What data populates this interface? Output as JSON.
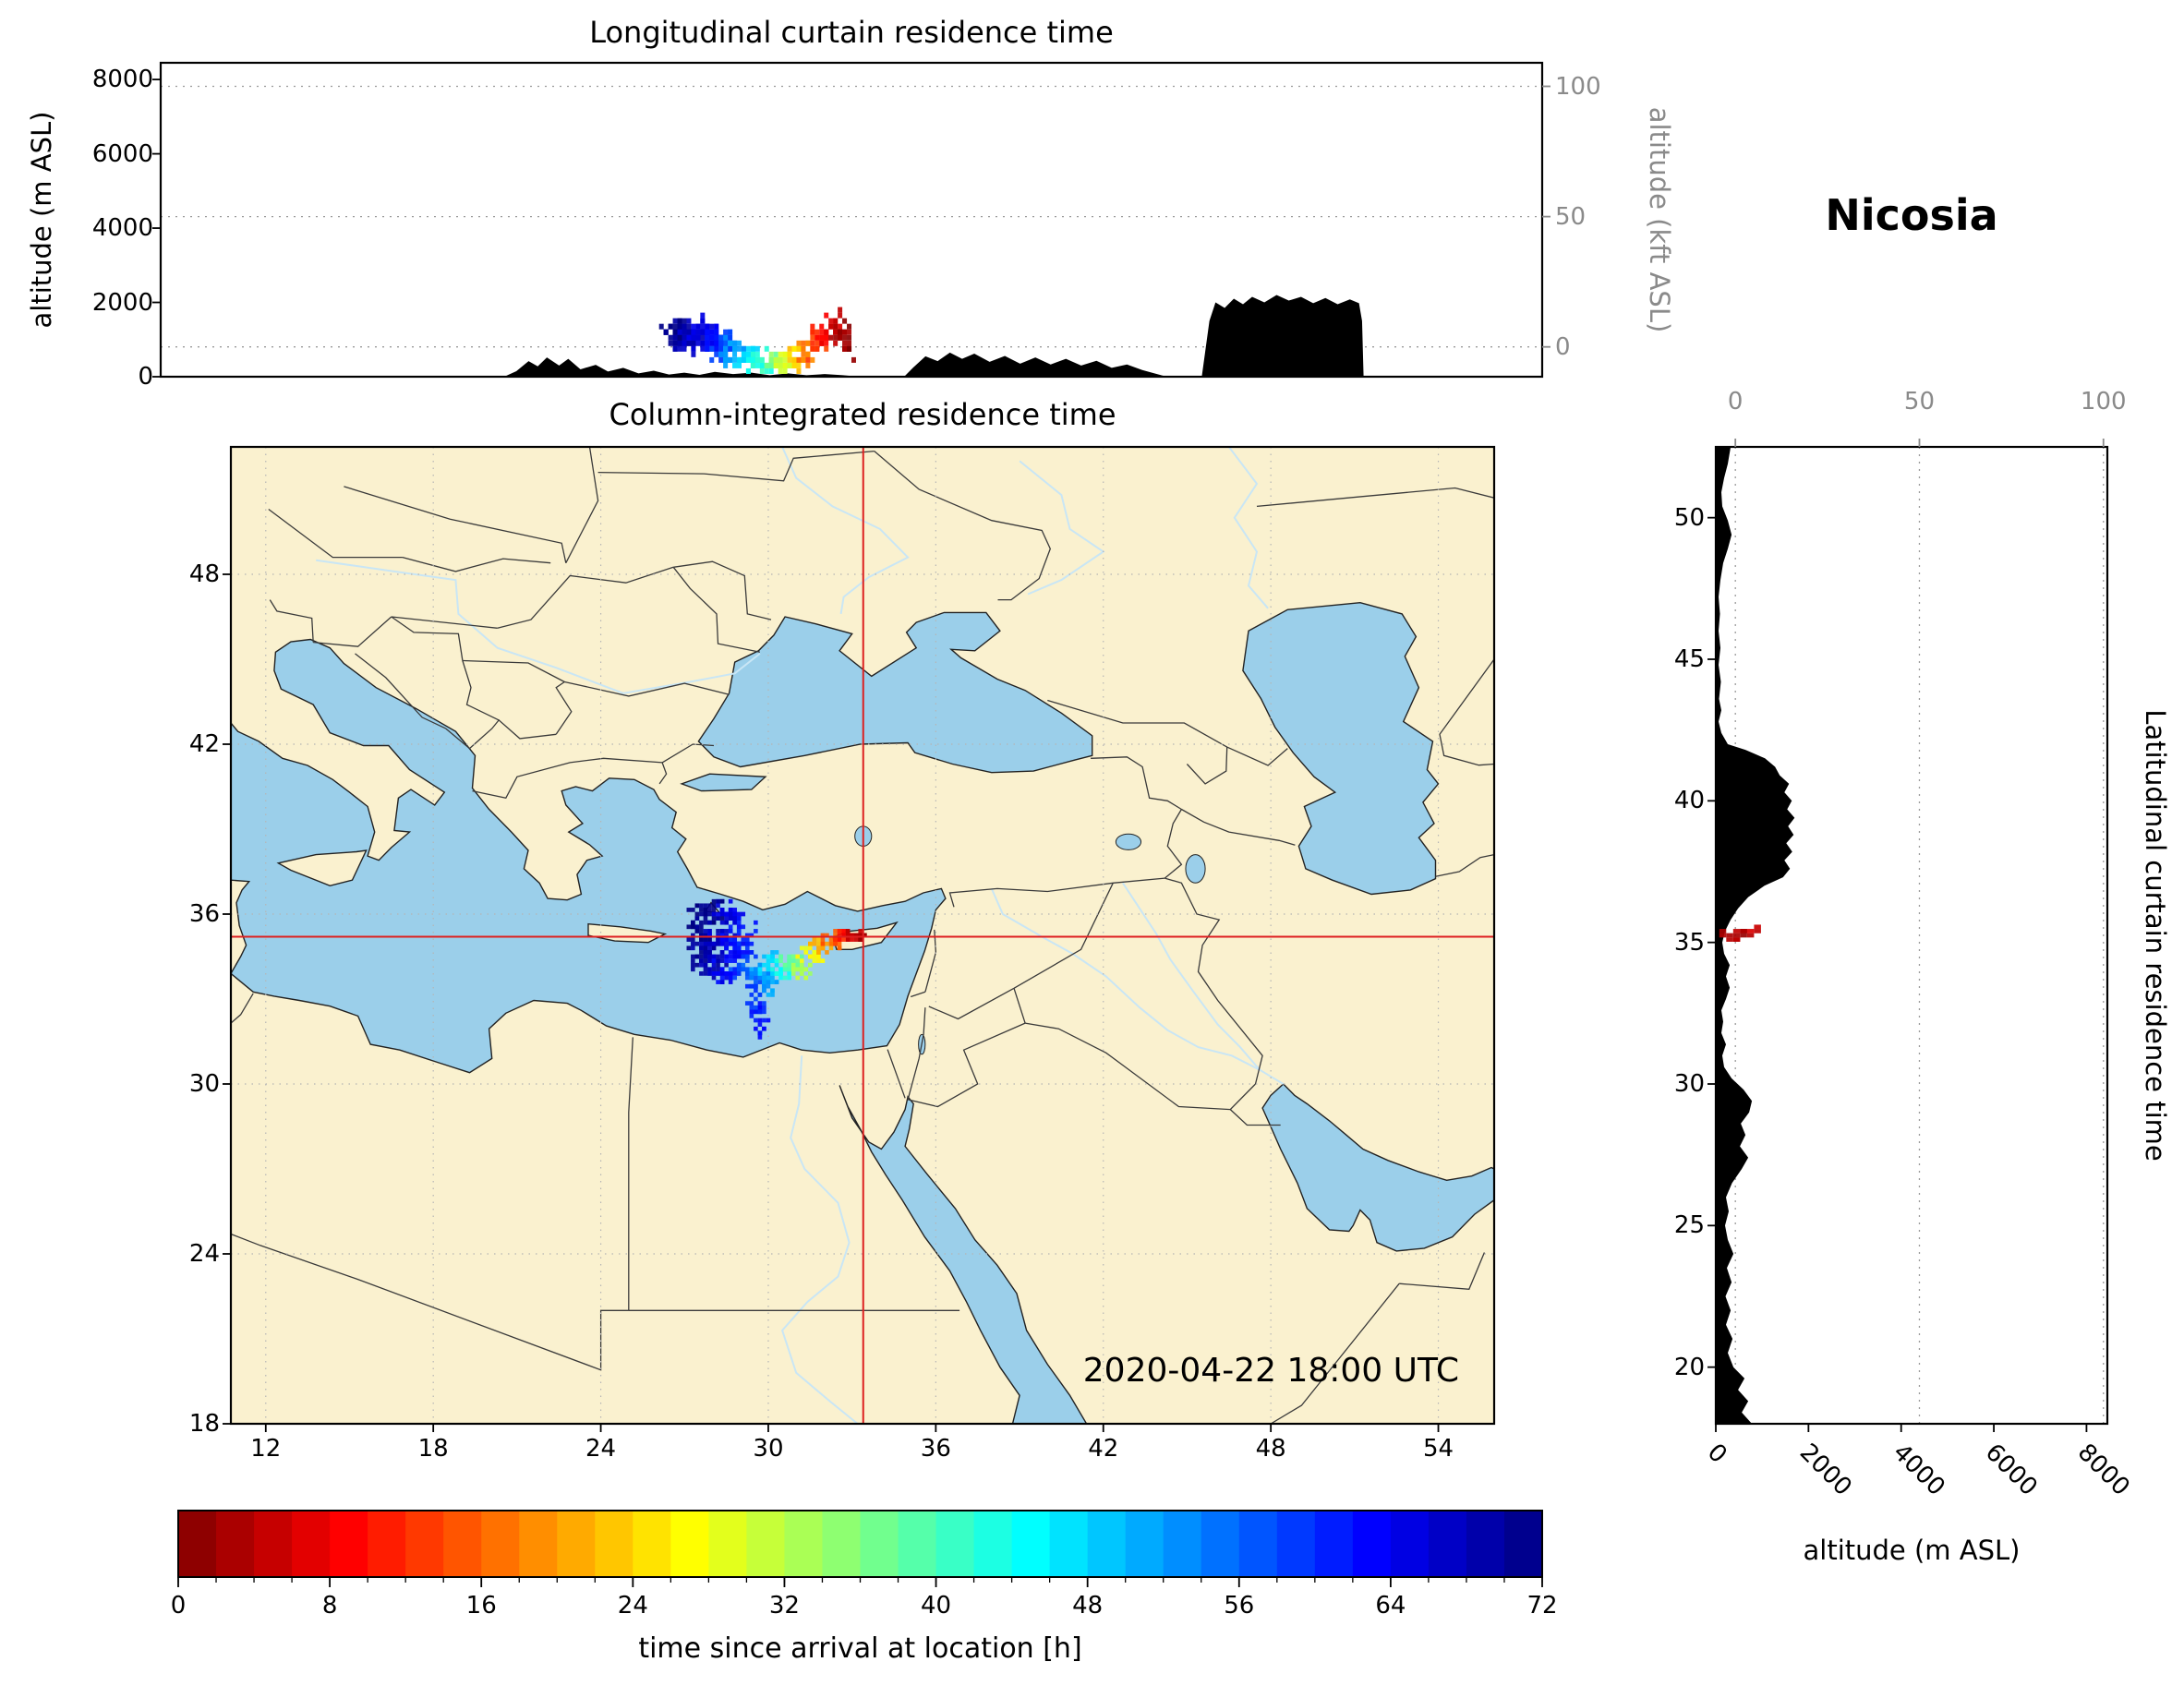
{
  "station": {
    "name": "Nicosia"
  },
  "timestamp_label": "2020-04-22 18:00 UTC",
  "top_panel": {
    "title": "Longitudinal curtain residence time",
    "ylabel_left": "altitude (m ASL)",
    "ylabel_right": "altitude (kft ASL)",
    "ytick_left_values": [
      0,
      2000,
      4000,
      6000,
      8000
    ],
    "ytick_right_values": [
      0,
      50,
      100
    ],
    "alt_max_m": 8450
  },
  "map_panel": {
    "title": "Column-integrated residence time",
    "xtick_values": [
      12,
      18,
      24,
      30,
      36,
      42,
      48,
      54
    ],
    "ytick_values": [
      18,
      24,
      30,
      36,
      42,
      48
    ],
    "lon_min": 10.75,
    "lon_max": 56,
    "lat_min": 18,
    "lat_max": 52.5,
    "crosshair_lon": 33.4,
    "crosshair_lat": 35.2
  },
  "right_panel": {
    "ylabel_right": "Latitudinal curtain residence time",
    "xlabel": "altitude (m ASL)",
    "xtick_bottom_values": [
      0,
      2000,
      4000,
      6000,
      8000
    ],
    "xtick_top_values": [
      0,
      50,
      100
    ],
    "ytick_values": [
      20,
      25,
      30,
      35,
      40,
      45,
      50
    ],
    "alt_max_m": 8450
  },
  "colorbar": {
    "label": "time since arrival at location [h]",
    "tick_values": [
      0,
      8,
      16,
      24,
      32,
      40,
      48,
      56,
      64,
      72
    ],
    "t_min": 0,
    "t_max": 72,
    "n_levels": 36,
    "minor_step": 2,
    "colormap": "jet_reversed"
  },
  "colors": {
    "land": "#faf1cf",
    "water": "#9bcfea",
    "river": "#c9e6f5",
    "terrain": "#000000",
    "crosshair": "#dd2020",
    "grid": "#b5b5b5",
    "axis_gray": "#8a8a8a",
    "frame": "#000000"
  },
  "chart_data": [
    {
      "type": "heatmap",
      "subtype": "longitudinal-curtain",
      "title": "Longitudinal curtain residence time",
      "x": "longitude_deg",
      "y": "altitude_m",
      "value": "time_since_arrival_h",
      "xlim": [
        10.75,
        56
      ],
      "ylim": [
        0,
        8450
      ],
      "terrain_profile": [
        [
          10.75,
          0
        ],
        [
          22.0,
          0
        ],
        [
          22.4,
          150
        ],
        [
          22.8,
          420
        ],
        [
          23.1,
          280
        ],
        [
          23.4,
          520
        ],
        [
          23.8,
          300
        ],
        [
          24.1,
          480
        ],
        [
          24.5,
          200
        ],
        [
          25.0,
          320
        ],
        [
          25.4,
          140
        ],
        [
          25.9,
          240
        ],
        [
          26.4,
          90
        ],
        [
          26.9,
          160
        ],
        [
          27.4,
          60
        ],
        [
          27.9,
          110
        ],
        [
          28.4,
          50
        ],
        [
          28.9,
          130
        ],
        [
          29.5,
          70
        ],
        [
          30.1,
          110
        ],
        [
          30.7,
          40
        ],
        [
          31.3,
          90
        ],
        [
          31.9,
          40
        ],
        [
          32.5,
          70
        ],
        [
          33.1,
          40
        ],
        [
          33.5,
          10
        ],
        [
          33.9,
          0
        ],
        [
          35.1,
          0
        ],
        [
          35.4,
          250
        ],
        [
          35.8,
          550
        ],
        [
          36.2,
          420
        ],
        [
          36.6,
          650
        ],
        [
          37.0,
          480
        ],
        [
          37.4,
          620
        ],
        [
          37.9,
          400
        ],
        [
          38.4,
          560
        ],
        [
          38.9,
          350
        ],
        [
          39.4,
          520
        ],
        [
          39.9,
          330
        ],
        [
          40.4,
          480
        ],
        [
          40.9,
          300
        ],
        [
          41.4,
          430
        ],
        [
          41.9,
          240
        ],
        [
          42.4,
          330
        ],
        [
          42.9,
          180
        ],
        [
          43.3,
          90
        ],
        [
          43.7,
          0
        ],
        [
          44.85,
          0
        ],
        [
          44.95,
          600
        ],
        [
          45.1,
          1500
        ],
        [
          45.3,
          2000
        ],
        [
          45.6,
          1850
        ],
        [
          45.9,
          2100
        ],
        [
          46.2,
          1950
        ],
        [
          46.5,
          2150
        ],
        [
          46.9,
          2000
        ],
        [
          47.3,
          2200
        ],
        [
          47.7,
          2050
        ],
        [
          48.1,
          2150
        ],
        [
          48.5,
          1980
        ],
        [
          48.9,
          2120
        ],
        [
          49.3,
          1950
        ],
        [
          49.7,
          2080
        ],
        [
          50.0,
          1980
        ],
        [
          50.1,
          1500
        ],
        [
          50.15,
          0
        ],
        [
          56,
          0
        ]
      ],
      "plume_clusters": [
        [
          27.7,
          1150,
          71,
          45,
          0.28,
          260
        ],
        [
          28.1,
          1050,
          68,
          40,
          0.3,
          280
        ],
        [
          28.5,
          1150,
          65,
          40,
          0.3,
          260
        ],
        [
          28.9,
          1000,
          62,
          35,
          0.28,
          240
        ],
        [
          29.2,
          850,
          58,
          28,
          0.25,
          220
        ],
        [
          29.6,
          650,
          52,
          26,
          0.25,
          200
        ],
        [
          30.0,
          500,
          47,
          24,
          0.25,
          180
        ],
        [
          30.4,
          420,
          42,
          22,
          0.24,
          170
        ],
        [
          30.8,
          380,
          36,
          20,
          0.24,
          160
        ],
        [
          31.2,
          330,
          30,
          18,
          0.22,
          150
        ],
        [
          31.6,
          480,
          24,
          16,
          0.2,
          180
        ],
        [
          31.9,
          700,
          18,
          16,
          0.2,
          220
        ],
        [
          32.2,
          950,
          13,
          16,
          0.2,
          260
        ],
        [
          32.5,
          1150,
          9,
          16,
          0.18,
          280
        ],
        [
          32.8,
          1250,
          5,
          16,
          0.18,
          300
        ],
        [
          33.1,
          1100,
          2,
          14,
          0.15,
          320
        ],
        [
          33.3,
          900,
          1,
          10,
          0.1,
          300
        ]
      ]
    },
    {
      "type": "heatmap",
      "subtype": "column-integrated-map",
      "title": "Column-integrated residence time",
      "x": "longitude_deg",
      "y": "latitude_deg",
      "value": "time_since_arrival_h",
      "xlim": [
        10.75,
        56
      ],
      "ylim": [
        18,
        52.5
      ],
      "crosshair": {
        "lon": 33.4,
        "lat": 35.2
      },
      "plume_clusters": [
        [
          27.8,
          35.7,
          71,
          55,
          0.35,
          0.45
        ],
        [
          27.7,
          34.9,
          70,
          45,
          0.3,
          0.45
        ],
        [
          28.1,
          34.2,
          68,
          40,
          0.3,
          0.4
        ],
        [
          28.3,
          35.3,
          67,
          45,
          0.32,
          0.45
        ],
        [
          28.6,
          36.0,
          65,
          35,
          0.35,
          0.3
        ],
        [
          28.8,
          34.7,
          63,
          35,
          0.3,
          0.35
        ],
        [
          28.5,
          33.9,
          63,
          28,
          0.28,
          0.3
        ],
        [
          29.1,
          35.2,
          61,
          30,
          0.3,
          0.35
        ],
        [
          29.2,
          34.1,
          58,
          26,
          0.26,
          0.3
        ],
        [
          29.5,
          33.3,
          59,
          22,
          0.22,
          0.35
        ],
        [
          29.65,
          32.5,
          61,
          16,
          0.18,
          0.3
        ],
        [
          29.75,
          32.0,
          63,
          10,
          0.14,
          0.2
        ],
        [
          29.8,
          33.9,
          53,
          24,
          0.26,
          0.28
        ],
        [
          30.1,
          34.35,
          48,
          24,
          0.28,
          0.28
        ],
        [
          30.1,
          33.5,
          51,
          18,
          0.22,
          0.24
        ],
        [
          30.5,
          34.0,
          44,
          22,
          0.26,
          0.26
        ],
        [
          30.9,
          34.35,
          38,
          22,
          0.26,
          0.26
        ],
        [
          31.2,
          34.0,
          33,
          18,
          0.24,
          0.22
        ],
        [
          31.5,
          34.6,
          27,
          20,
          0.26,
          0.22
        ],
        [
          31.9,
          34.9,
          21,
          18,
          0.26,
          0.2
        ],
        [
          32.3,
          35.05,
          15,
          18,
          0.26,
          0.18
        ],
        [
          32.7,
          35.2,
          10,
          18,
          0.24,
          0.16
        ],
        [
          33.05,
          35.3,
          5,
          16,
          0.2,
          0.13
        ],
        [
          33.35,
          35.22,
          1,
          12,
          0.13,
          0.1
        ]
      ]
    },
    {
      "type": "heatmap",
      "subtype": "latitudinal-curtain",
      "title": "Latitudinal curtain residence time",
      "x": "latitude_deg",
      "y": "altitude_m",
      "value": "time_since_arrival_h",
      "xlim": [
        18,
        52.5
      ],
      "ylim": [
        0,
        8450
      ],
      "terrain_profile": [
        [
          18,
          780
        ],
        [
          18.4,
          560
        ],
        [
          18.8,
          700
        ],
        [
          19.2,
          480
        ],
        [
          19.6,
          620
        ],
        [
          20.0,
          380
        ],
        [
          20.5,
          260
        ],
        [
          21.0,
          360
        ],
        [
          21.5,
          220
        ],
        [
          22.0,
          320
        ],
        [
          22.5,
          210
        ],
        [
          23.0,
          340
        ],
        [
          23.5,
          240
        ],
        [
          24.0,
          380
        ],
        [
          24.5,
          260
        ],
        [
          25.0,
          200
        ],
        [
          25.5,
          280
        ],
        [
          26.0,
          220
        ],
        [
          26.5,
          350
        ],
        [
          27.0,
          560
        ],
        [
          27.4,
          700
        ],
        [
          27.8,
          520
        ],
        [
          28.2,
          640
        ],
        [
          28.6,
          540
        ],
        [
          29.0,
          720
        ],
        [
          29.4,
          780
        ],
        [
          29.8,
          600
        ],
        [
          30.2,
          340
        ],
        [
          30.6,
          180
        ],
        [
          31.0,
          140
        ],
        [
          31.4,
          220
        ],
        [
          31.8,
          120
        ],
        [
          32.2,
          160
        ],
        [
          32.6,
          120
        ],
        [
          33.0,
          220
        ],
        [
          33.4,
          300
        ],
        [
          33.8,
          220
        ],
        [
          34.2,
          300
        ],
        [
          34.6,
          180
        ],
        [
          35.0,
          140
        ],
        [
          35.4,
          200
        ],
        [
          35.8,
          320
        ],
        [
          36.2,
          480
        ],
        [
          36.6,
          700
        ],
        [
          37.0,
          1050
        ],
        [
          37.3,
          1450
        ],
        [
          37.6,
          1600
        ],
        [
          37.9,
          1480
        ],
        [
          38.2,
          1650
        ],
        [
          38.5,
          1520
        ],
        [
          38.8,
          1680
        ],
        [
          39.1,
          1560
        ],
        [
          39.4,
          1700
        ],
        [
          39.7,
          1540
        ],
        [
          40.0,
          1640
        ],
        [
          40.3,
          1480
        ],
        [
          40.6,
          1580
        ],
        [
          40.9,
          1380
        ],
        [
          41.2,
          1280
        ],
        [
          41.5,
          1060
        ],
        [
          41.8,
          640
        ],
        [
          42.0,
          260
        ],
        [
          42.4,
          120
        ],
        [
          42.8,
          60
        ],
        [
          43.2,
          120
        ],
        [
          43.6,
          70
        ],
        [
          44.2,
          110
        ],
        [
          44.8,
          60
        ],
        [
          45.4,
          100
        ],
        [
          46.0,
          60
        ],
        [
          46.6,
          90
        ],
        [
          47.2,
          60
        ],
        [
          47.8,
          100
        ],
        [
          48.4,
          160
        ],
        [
          48.9,
          260
        ],
        [
          49.4,
          340
        ],
        [
          49.9,
          260
        ],
        [
          50.4,
          140
        ],
        [
          50.9,
          120
        ],
        [
          51.4,
          180
        ],
        [
          51.9,
          260
        ],
        [
          52.5,
          320
        ]
      ],
      "plume_clusters": [
        [
          35.25,
          450,
          3,
          10,
          0.1,
          180
        ],
        [
          35.4,
          700,
          6,
          6,
          0.08,
          150
        ]
      ]
    }
  ]
}
